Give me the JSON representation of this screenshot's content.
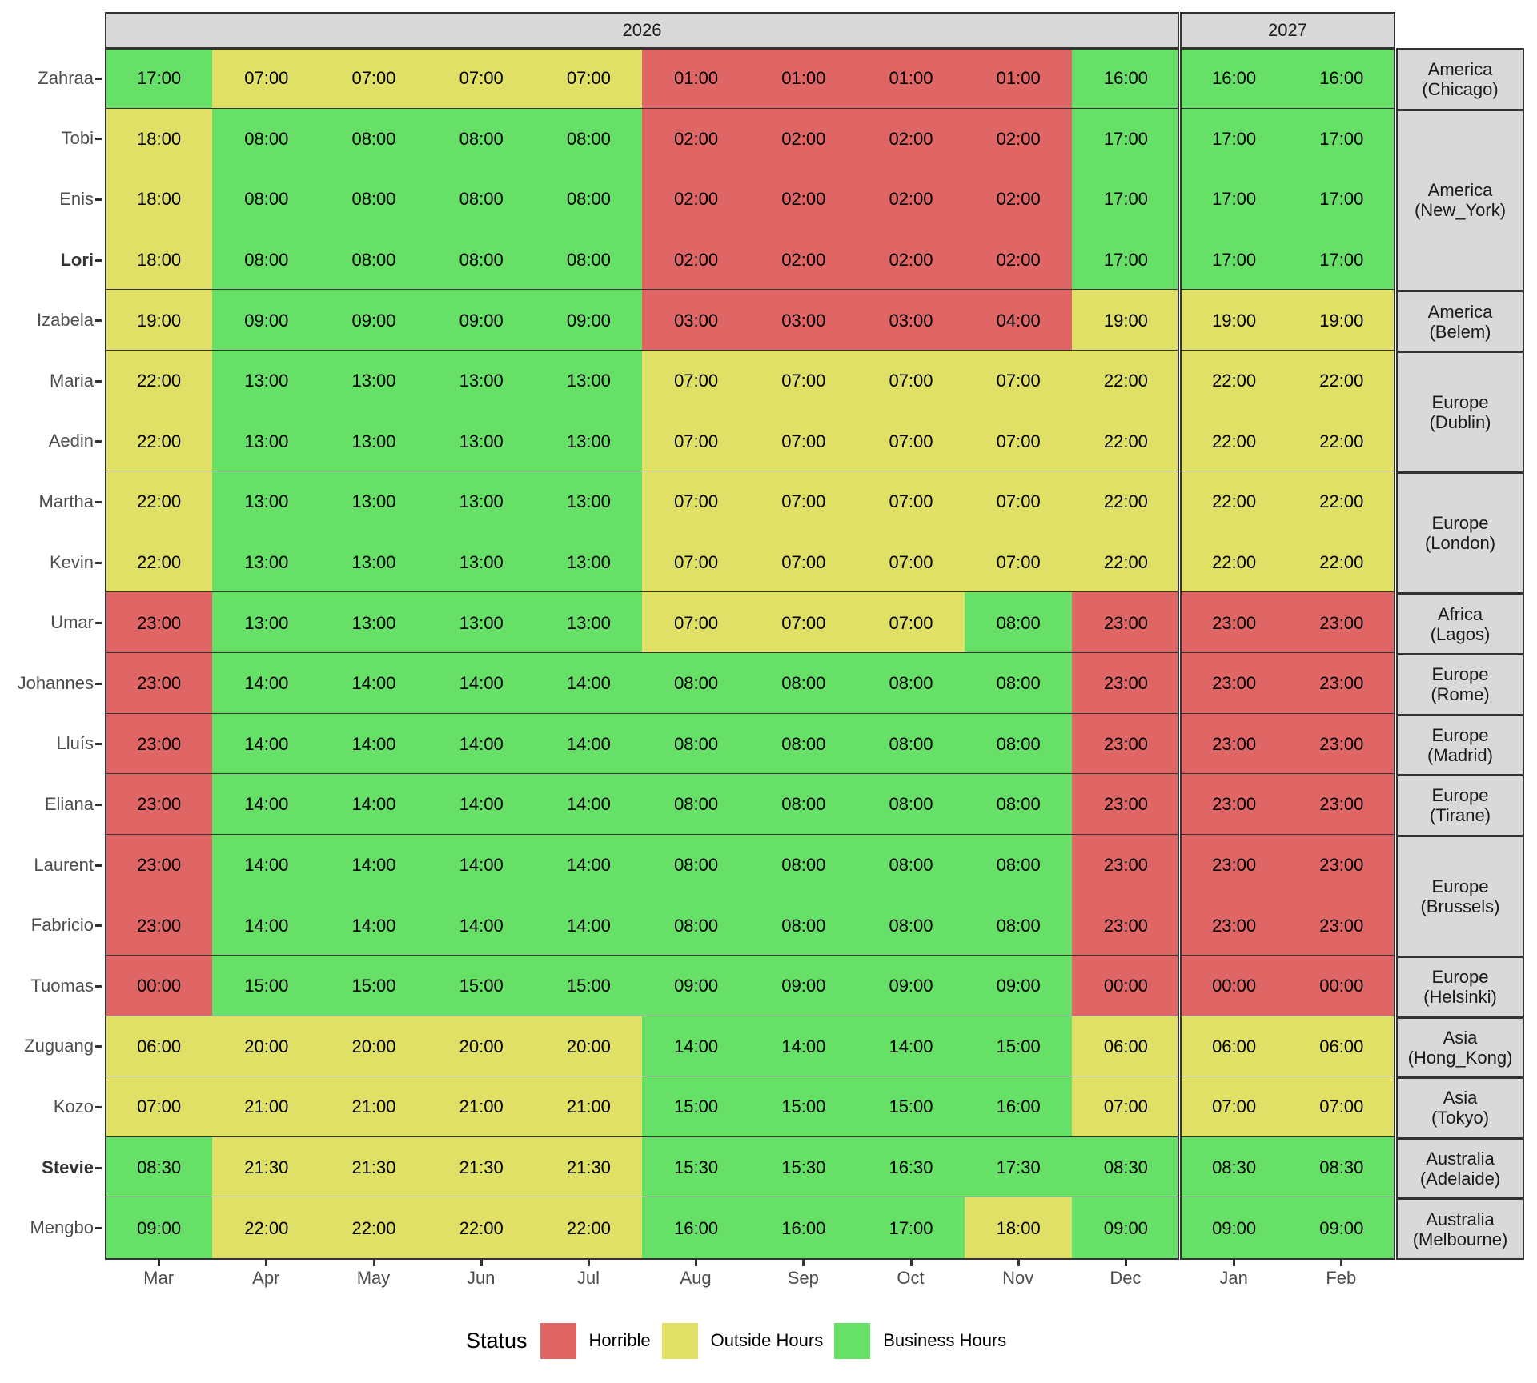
{
  "chart_data": {
    "type": "heatmap",
    "title": "",
    "xlabel": "",
    "ylabel": "",
    "legend": {
      "title": "Status",
      "position": "bottom",
      "entries": [
        {
          "label": "Horrible",
          "color": "#e06666"
        },
        {
          "label": "Outside Hours",
          "color": "#e0e066"
        },
        {
          "label": "Business Hours",
          "color": "#66e066"
        }
      ]
    },
    "facets_x": [
      {
        "label": "2026",
        "months": [
          "Mar",
          "Apr",
          "May",
          "Jun",
          "Jul",
          "Aug",
          "Sep",
          "Oct",
          "Nov",
          "Dec"
        ]
      },
      {
        "label": "2027",
        "months": [
          "Jan",
          "Feb"
        ]
      }
    ],
    "months": [
      "Mar",
      "Apr",
      "May",
      "Jun",
      "Jul",
      "Aug",
      "Sep",
      "Oct",
      "Nov",
      "Dec",
      "Jan",
      "Feb"
    ],
    "status_codes": {
      "H": "Horrible",
      "O": "Outside Hours",
      "B": "Business Hours"
    },
    "groups": [
      {
        "zone": "America\n(Chicago)",
        "people": [
          {
            "name": "Zahraa",
            "bold": false,
            "times": [
              "17:00",
              "07:00",
              "07:00",
              "07:00",
              "07:00",
              "01:00",
              "01:00",
              "01:00",
              "01:00",
              "16:00",
              "16:00",
              "16:00"
            ],
            "status": [
              "B",
              "O",
              "O",
              "O",
              "O",
              "H",
              "H",
              "H",
              "H",
              "B",
              "B",
              "B"
            ]
          }
        ]
      },
      {
        "zone": "America\n(New_York)",
        "people": [
          {
            "name": "Tobi",
            "bold": false,
            "times": [
              "18:00",
              "08:00",
              "08:00",
              "08:00",
              "08:00",
              "02:00",
              "02:00",
              "02:00",
              "02:00",
              "17:00",
              "17:00",
              "17:00"
            ],
            "status": [
              "O",
              "B",
              "B",
              "B",
              "B",
              "H",
              "H",
              "H",
              "H",
              "B",
              "B",
              "B"
            ]
          },
          {
            "name": "Enis",
            "bold": false,
            "times": [
              "18:00",
              "08:00",
              "08:00",
              "08:00",
              "08:00",
              "02:00",
              "02:00",
              "02:00",
              "02:00",
              "17:00",
              "17:00",
              "17:00"
            ],
            "status": [
              "O",
              "B",
              "B",
              "B",
              "B",
              "H",
              "H",
              "H",
              "H",
              "B",
              "B",
              "B"
            ]
          },
          {
            "name": "Lori",
            "bold": true,
            "times": [
              "18:00",
              "08:00",
              "08:00",
              "08:00",
              "08:00",
              "02:00",
              "02:00",
              "02:00",
              "02:00",
              "17:00",
              "17:00",
              "17:00"
            ],
            "status": [
              "O",
              "B",
              "B",
              "B",
              "B",
              "H",
              "H",
              "H",
              "H",
              "B",
              "B",
              "B"
            ]
          }
        ]
      },
      {
        "zone": "America\n(Belem)",
        "people": [
          {
            "name": "Izabela",
            "bold": false,
            "times": [
              "19:00",
              "09:00",
              "09:00",
              "09:00",
              "09:00",
              "03:00",
              "03:00",
              "03:00",
              "04:00",
              "19:00",
              "19:00",
              "19:00"
            ],
            "status": [
              "O",
              "B",
              "B",
              "B",
              "B",
              "H",
              "H",
              "H",
              "H",
              "O",
              "O",
              "O"
            ]
          }
        ]
      },
      {
        "zone": "Europe\n(Dublin)",
        "people": [
          {
            "name": "Maria",
            "bold": false,
            "times": [
              "22:00",
              "13:00",
              "13:00",
              "13:00",
              "13:00",
              "07:00",
              "07:00",
              "07:00",
              "07:00",
              "22:00",
              "22:00",
              "22:00"
            ],
            "status": [
              "O",
              "B",
              "B",
              "B",
              "B",
              "O",
              "O",
              "O",
              "O",
              "O",
              "O",
              "O"
            ]
          },
          {
            "name": "Aedin",
            "bold": false,
            "times": [
              "22:00",
              "13:00",
              "13:00",
              "13:00",
              "13:00",
              "07:00",
              "07:00",
              "07:00",
              "07:00",
              "22:00",
              "22:00",
              "22:00"
            ],
            "status": [
              "O",
              "B",
              "B",
              "B",
              "B",
              "O",
              "O",
              "O",
              "O",
              "O",
              "O",
              "O"
            ]
          }
        ]
      },
      {
        "zone": "Europe\n(London)",
        "people": [
          {
            "name": "Martha",
            "bold": false,
            "times": [
              "22:00",
              "13:00",
              "13:00",
              "13:00",
              "13:00",
              "07:00",
              "07:00",
              "07:00",
              "07:00",
              "22:00",
              "22:00",
              "22:00"
            ],
            "status": [
              "O",
              "B",
              "B",
              "B",
              "B",
              "O",
              "O",
              "O",
              "O",
              "O",
              "O",
              "O"
            ]
          },
          {
            "name": "Kevin",
            "bold": false,
            "times": [
              "22:00",
              "13:00",
              "13:00",
              "13:00",
              "13:00",
              "07:00",
              "07:00",
              "07:00",
              "07:00",
              "22:00",
              "22:00",
              "22:00"
            ],
            "status": [
              "O",
              "B",
              "B",
              "B",
              "B",
              "O",
              "O",
              "O",
              "O",
              "O",
              "O",
              "O"
            ]
          }
        ]
      },
      {
        "zone": "Africa\n(Lagos)",
        "people": [
          {
            "name": "Umar",
            "bold": false,
            "times": [
              "23:00",
              "13:00",
              "13:00",
              "13:00",
              "13:00",
              "07:00",
              "07:00",
              "07:00",
              "08:00",
              "23:00",
              "23:00",
              "23:00"
            ],
            "status": [
              "H",
              "B",
              "B",
              "B",
              "B",
              "O",
              "O",
              "O",
              "B",
              "H",
              "H",
              "H"
            ]
          }
        ]
      },
      {
        "zone": "Europe\n(Rome)",
        "people": [
          {
            "name": "Johannes",
            "bold": false,
            "times": [
              "23:00",
              "14:00",
              "14:00",
              "14:00",
              "14:00",
              "08:00",
              "08:00",
              "08:00",
              "08:00",
              "23:00",
              "23:00",
              "23:00"
            ],
            "status": [
              "H",
              "B",
              "B",
              "B",
              "B",
              "B",
              "B",
              "B",
              "B",
              "H",
              "H",
              "H"
            ]
          }
        ]
      },
      {
        "zone": "Europe\n(Madrid)",
        "people": [
          {
            "name": "Lluís",
            "bold": false,
            "times": [
              "23:00",
              "14:00",
              "14:00",
              "14:00",
              "14:00",
              "08:00",
              "08:00",
              "08:00",
              "08:00",
              "23:00",
              "23:00",
              "23:00"
            ],
            "status": [
              "H",
              "B",
              "B",
              "B",
              "B",
              "B",
              "B",
              "B",
              "B",
              "H",
              "H",
              "H"
            ]
          }
        ]
      },
      {
        "zone": "Europe\n(Tirane)",
        "people": [
          {
            "name": "Eliana",
            "bold": false,
            "times": [
              "23:00",
              "14:00",
              "14:00",
              "14:00",
              "14:00",
              "08:00",
              "08:00",
              "08:00",
              "08:00",
              "23:00",
              "23:00",
              "23:00"
            ],
            "status": [
              "H",
              "B",
              "B",
              "B",
              "B",
              "B",
              "B",
              "B",
              "B",
              "H",
              "H",
              "H"
            ]
          }
        ]
      },
      {
        "zone": "Europe\n(Brussels)",
        "people": [
          {
            "name": "Laurent",
            "bold": false,
            "times": [
              "23:00",
              "14:00",
              "14:00",
              "14:00",
              "14:00",
              "08:00",
              "08:00",
              "08:00",
              "08:00",
              "23:00",
              "23:00",
              "23:00"
            ],
            "status": [
              "H",
              "B",
              "B",
              "B",
              "B",
              "B",
              "B",
              "B",
              "B",
              "H",
              "H",
              "H"
            ]
          },
          {
            "name": "Fabricio",
            "bold": false,
            "times": [
              "23:00",
              "14:00",
              "14:00",
              "14:00",
              "14:00",
              "08:00",
              "08:00",
              "08:00",
              "08:00",
              "23:00",
              "23:00",
              "23:00"
            ],
            "status": [
              "H",
              "B",
              "B",
              "B",
              "B",
              "B",
              "B",
              "B",
              "B",
              "H",
              "H",
              "H"
            ]
          }
        ]
      },
      {
        "zone": "Europe\n(Helsinki)",
        "people": [
          {
            "name": "Tuomas",
            "bold": false,
            "times": [
              "00:00",
              "15:00",
              "15:00",
              "15:00",
              "15:00",
              "09:00",
              "09:00",
              "09:00",
              "09:00",
              "00:00",
              "00:00",
              "00:00"
            ],
            "status": [
              "H",
              "B",
              "B",
              "B",
              "B",
              "B",
              "B",
              "B",
              "B",
              "H",
              "H",
              "H"
            ]
          }
        ]
      },
      {
        "zone": "Asia\n(Hong_Kong)",
        "people": [
          {
            "name": "Zuguang",
            "bold": false,
            "times": [
              "06:00",
              "20:00",
              "20:00",
              "20:00",
              "20:00",
              "14:00",
              "14:00",
              "14:00",
              "15:00",
              "06:00",
              "06:00",
              "06:00"
            ],
            "status": [
              "O",
              "O",
              "O",
              "O",
              "O",
              "B",
              "B",
              "B",
              "B",
              "O",
              "O",
              "O"
            ]
          }
        ]
      },
      {
        "zone": "Asia\n(Tokyo)",
        "people": [
          {
            "name": "Kozo",
            "bold": false,
            "times": [
              "07:00",
              "21:00",
              "21:00",
              "21:00",
              "21:00",
              "15:00",
              "15:00",
              "15:00",
              "16:00",
              "07:00",
              "07:00",
              "07:00"
            ],
            "status": [
              "O",
              "O",
              "O",
              "O",
              "O",
              "B",
              "B",
              "B",
              "B",
              "O",
              "O",
              "O"
            ]
          }
        ]
      },
      {
        "zone": "Australia\n(Adelaide)",
        "people": [
          {
            "name": "Stevie",
            "bold": true,
            "times": [
              "08:30",
              "21:30",
              "21:30",
              "21:30",
              "21:30",
              "15:30",
              "15:30",
              "16:30",
              "17:30",
              "08:30",
              "08:30",
              "08:30"
            ],
            "status": [
              "B",
              "O",
              "O",
              "O",
              "O",
              "B",
              "B",
              "B",
              "B",
              "B",
              "B",
              "B"
            ]
          }
        ]
      },
      {
        "zone": "Australia\n(Melbourne)",
        "people": [
          {
            "name": "Mengbo",
            "bold": false,
            "times": [
              "09:00",
              "22:00",
              "22:00",
              "22:00",
              "22:00",
              "16:00",
              "16:00",
              "17:00",
              "18:00",
              "09:00",
              "09:00",
              "09:00"
            ],
            "status": [
              "B",
              "O",
              "O",
              "O",
              "O",
              "B",
              "B",
              "B",
              "O",
              "B",
              "B",
              "B"
            ]
          }
        ]
      }
    ]
  },
  "colors": {
    "H": "#e06666",
    "O": "#e0e066",
    "B": "#66e066",
    "strip_bg": "#d9d9d9",
    "border": "#333333"
  }
}
